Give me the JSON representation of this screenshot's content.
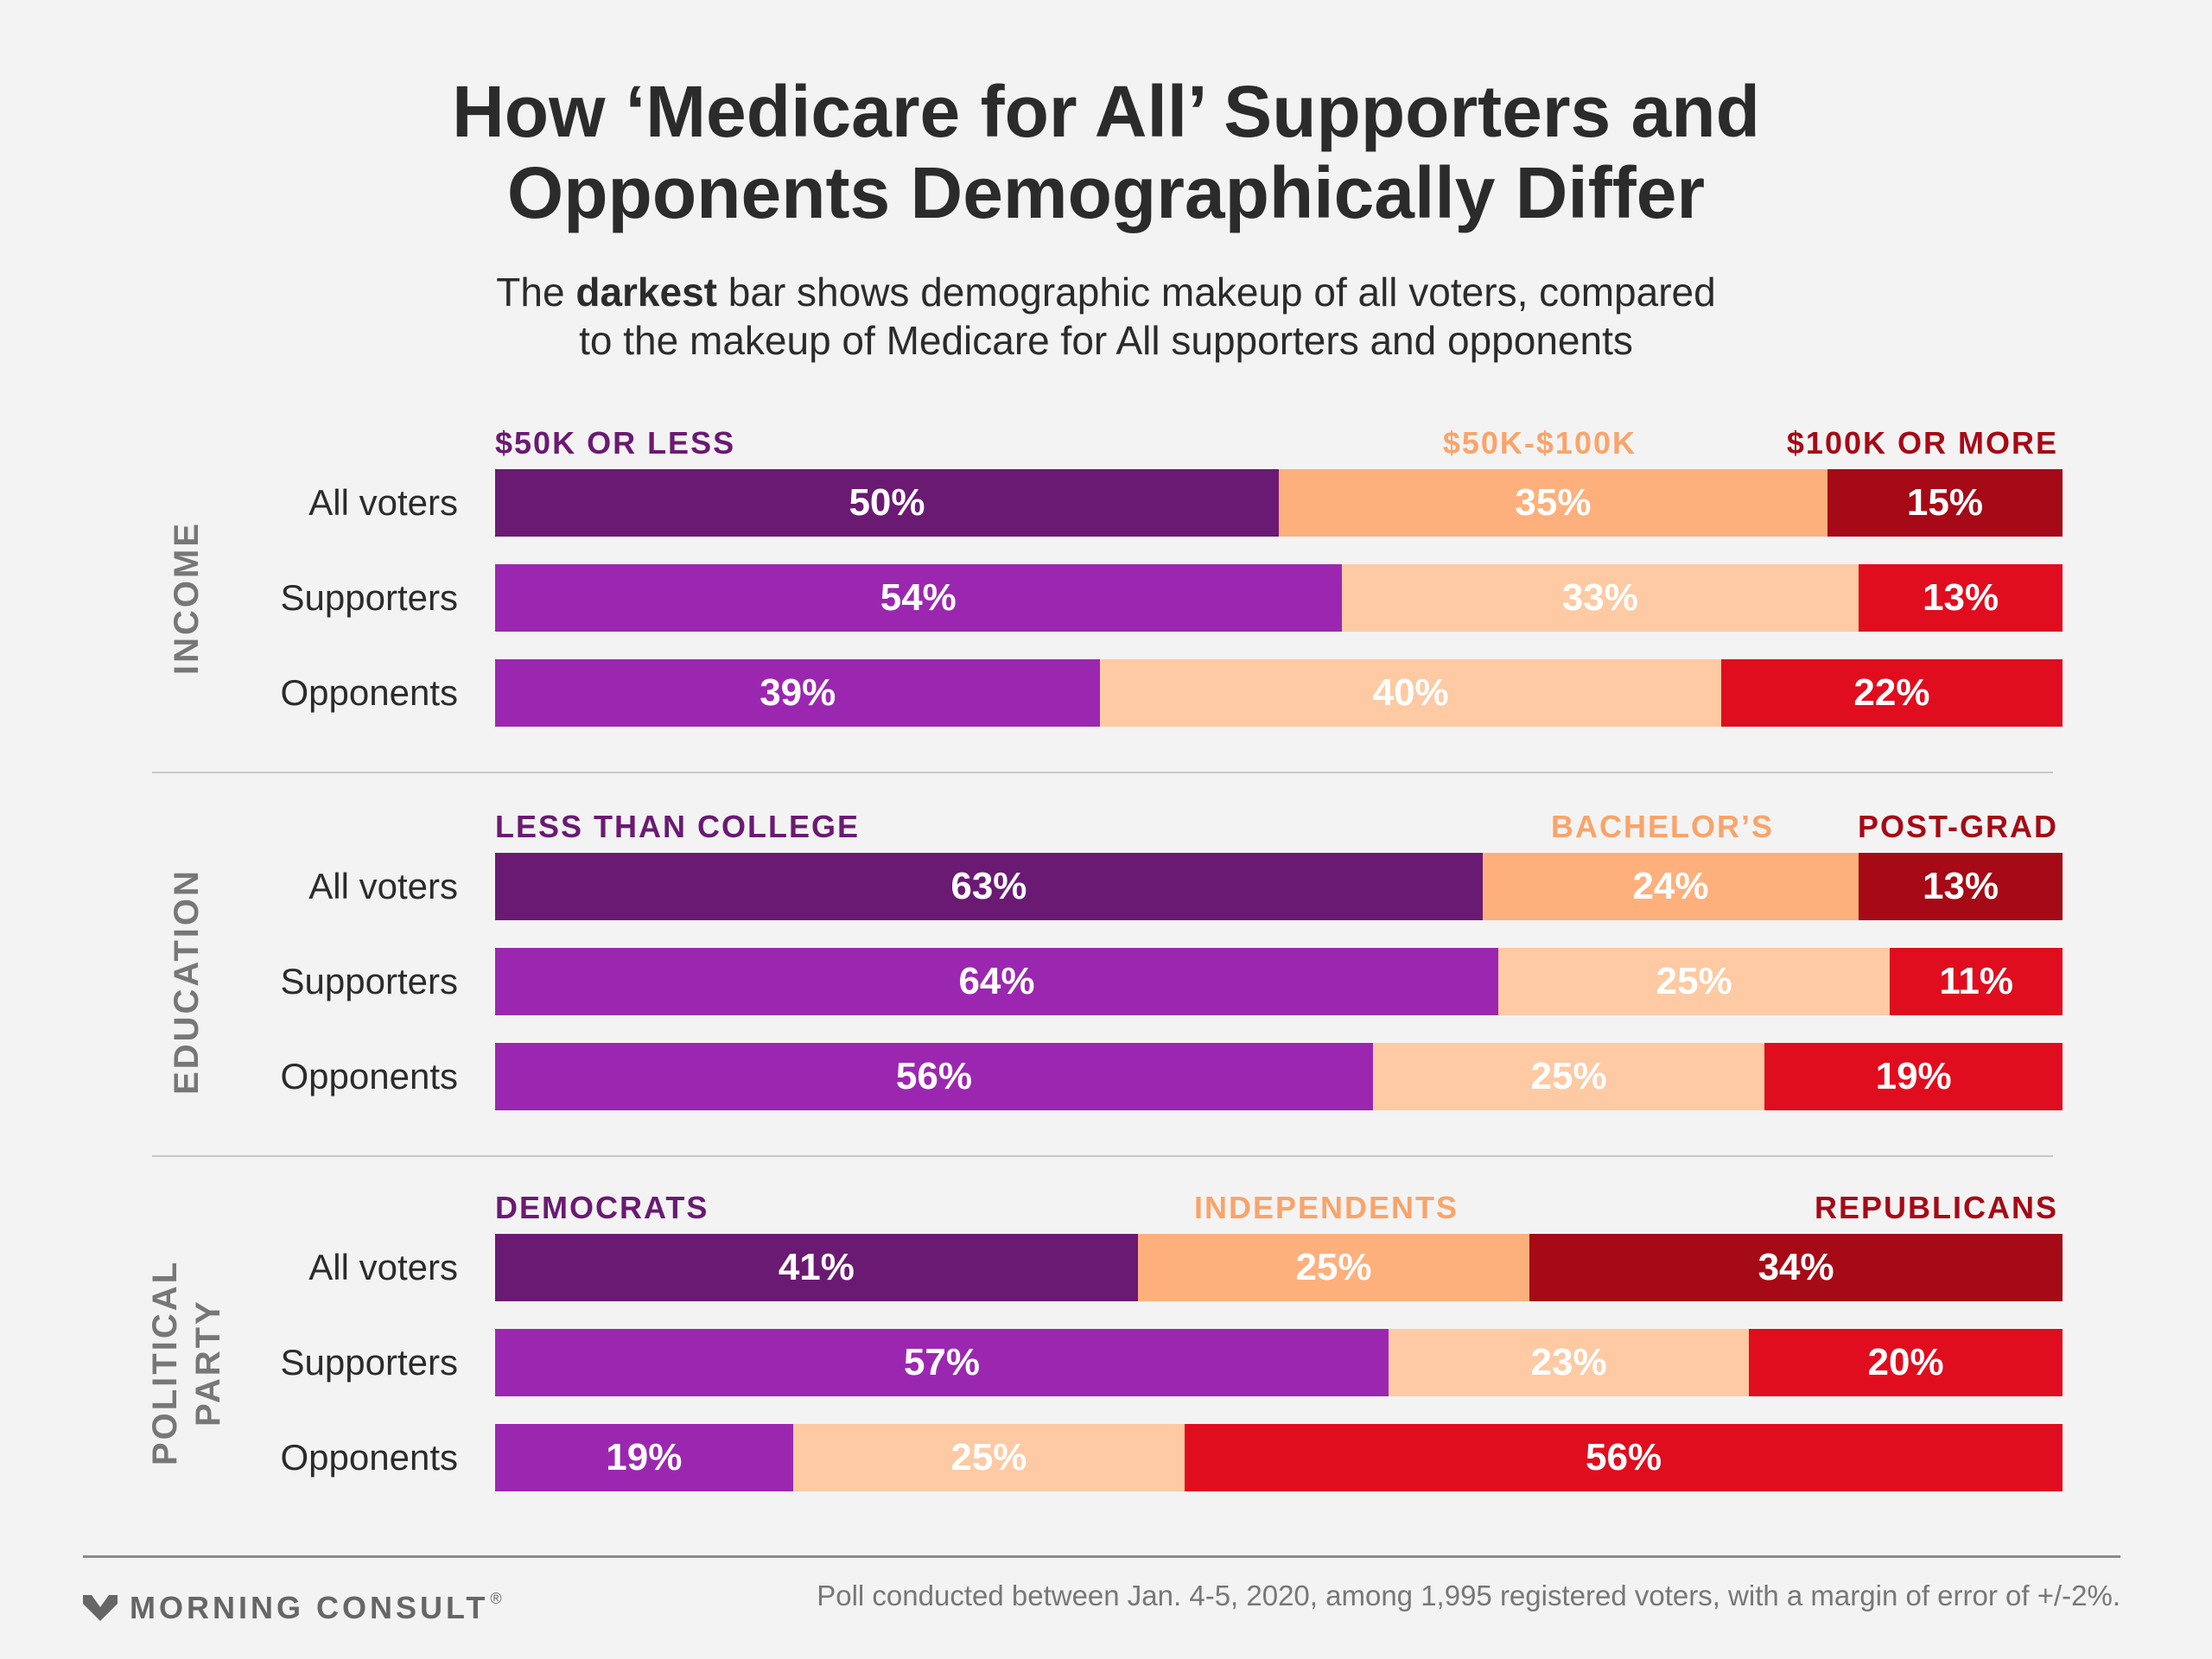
{
  "title_lines": [
    "How ‘Medicare for All’ Supporters and",
    "Opponents Demographically Differ"
  ],
  "subtitle": {
    "pre": "The ",
    "bold": "darkest",
    "post": " bar shows demographic makeup of all voters, compared",
    "line2": "to the makeup of Medicare for All supporters and opponents"
  },
  "colors": {
    "all_voters": [
      "#6a1a72",
      "#fdb07c",
      "#a50a16"
    ],
    "subgroups": [
      "#9b27b0",
      "#fdcaa3",
      "#e00d1e"
    ],
    "header": [
      "#6a1a72",
      "#f9a46a",
      "#a50a16"
    ]
  },
  "chart_data": {
    "type": "bar",
    "stacked": true,
    "orientation": "horizontal",
    "unit": "%",
    "groups": [
      {
        "name": "INCOME",
        "label_lines": [
          "INCOME"
        ],
        "segments": [
          "$50K OR LESS",
          "$50K-$100K",
          "$100K OR MORE"
        ],
        "rows": [
          {
            "label": "All voters",
            "values": [
              50,
              35,
              15
            ]
          },
          {
            "label": "Supporters",
            "values": [
              54,
              33,
              13
            ]
          },
          {
            "label": "Opponents",
            "values": [
              39,
              40,
              22
            ]
          }
        ]
      },
      {
        "name": "EDUCATION",
        "label_lines": [
          "EDUCATION"
        ],
        "segments": [
          "LESS THAN COLLEGE",
          "BACHELOR’S",
          "POST-GRAD"
        ],
        "rows": [
          {
            "label": "All voters",
            "values": [
              63,
              24,
              13
            ]
          },
          {
            "label": "Supporters",
            "values": [
              64,
              25,
              11
            ]
          },
          {
            "label": "Opponents",
            "values": [
              56,
              25,
              19
            ]
          }
        ]
      },
      {
        "name": "POLITICAL PARTY",
        "label_lines": [
          "POLITICAL",
          "PARTY"
        ],
        "segments": [
          "DEMOCRATS",
          "INDEPENDENTS",
          "REPUBLICANS"
        ],
        "rows": [
          {
            "label": "All voters",
            "values": [
              41,
              25,
              34
            ]
          },
          {
            "label": "Supporters",
            "values": [
              57,
              23,
              20
            ]
          },
          {
            "label": "Opponents",
            "values": [
              19,
              25,
              56
            ]
          }
        ]
      }
    ]
  },
  "footer": {
    "logo_text": "MORNING CONSULT",
    "logo_mark": "®",
    "note": "Poll conducted between Jan. 4-5, 2020, among 1,995 registered voters, with a margin of error of +/-2%."
  }
}
